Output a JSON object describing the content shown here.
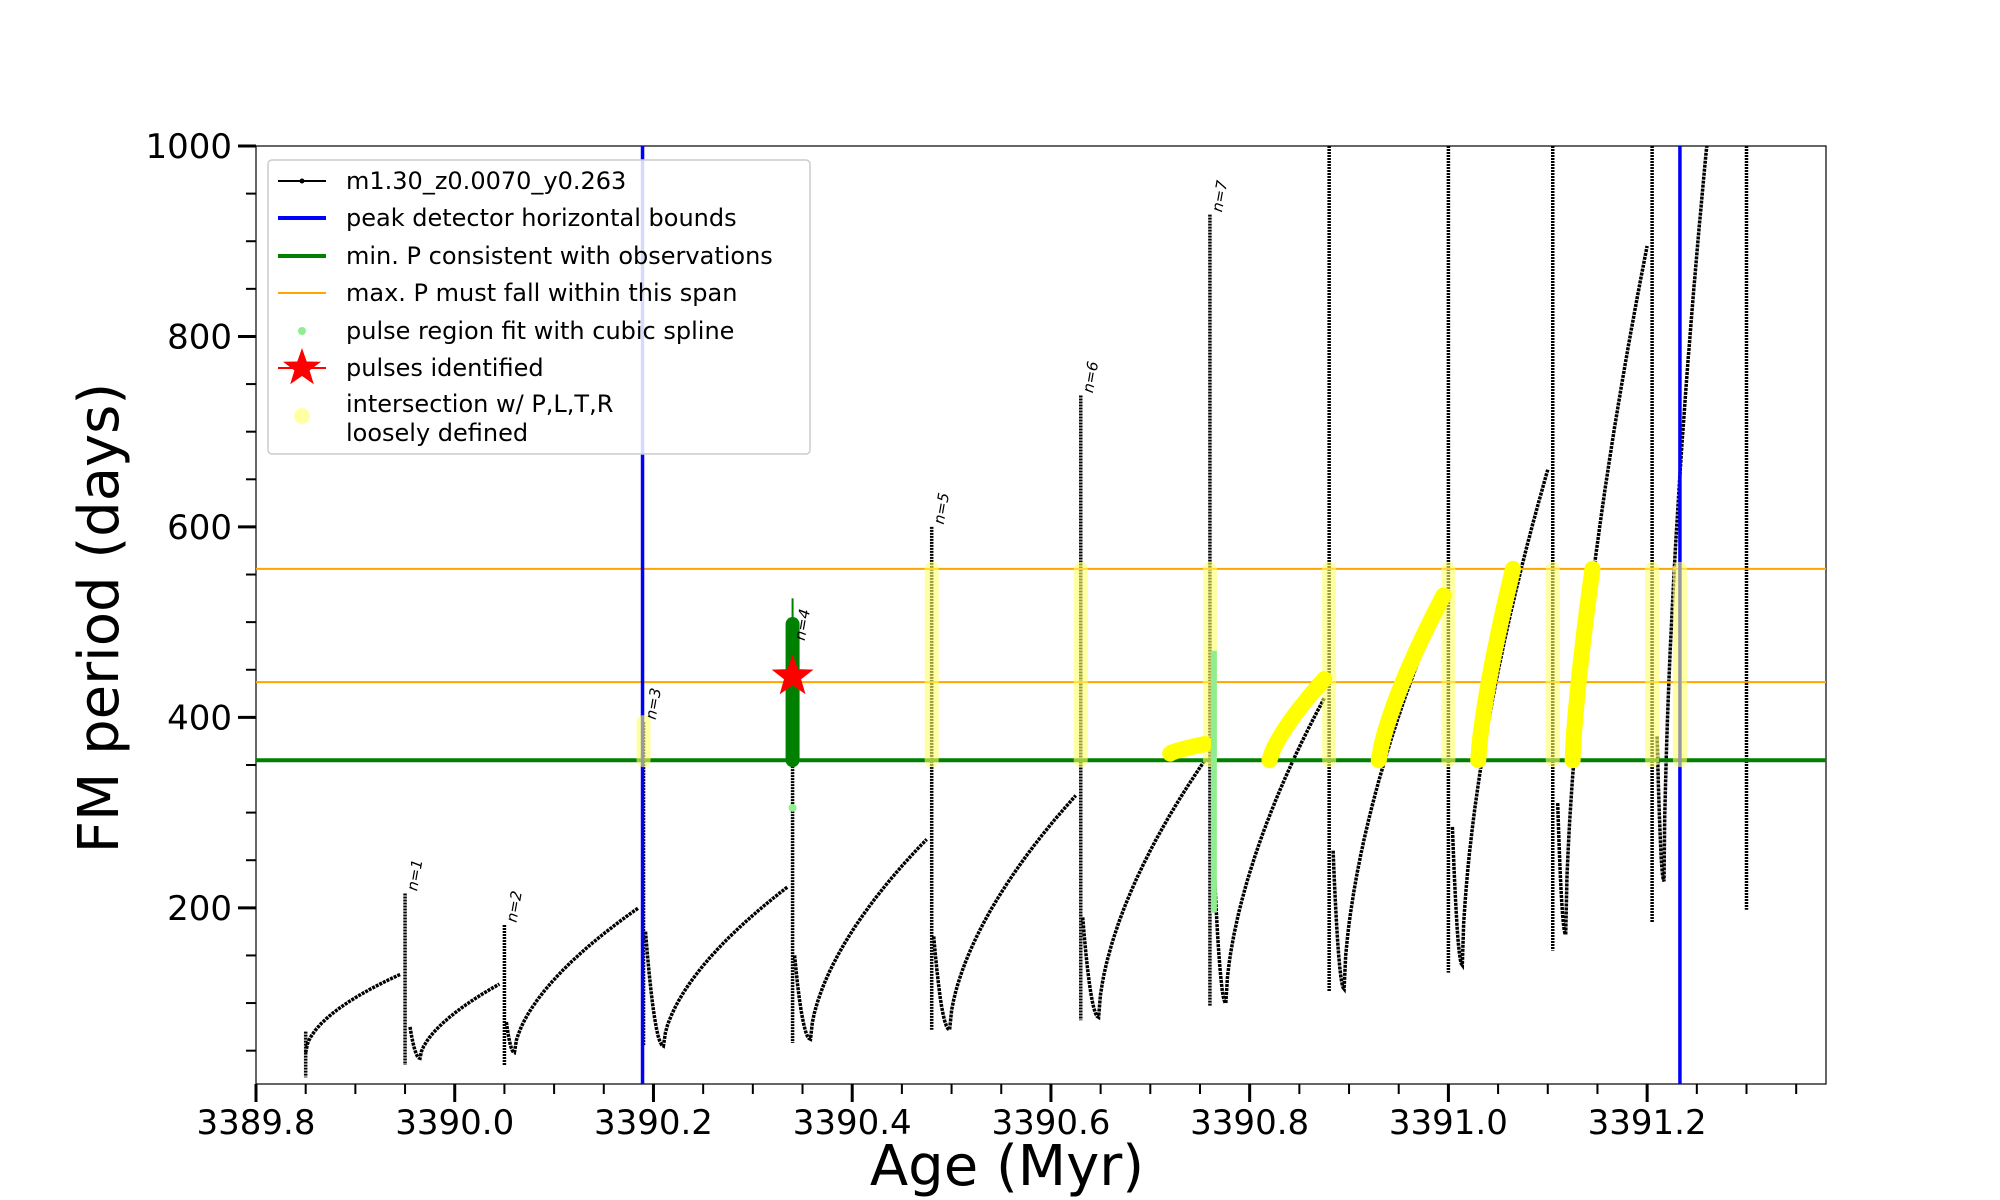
{
  "chart_data": {
    "type": "line",
    "title": "",
    "xlabel": "Age (Myr)",
    "ylabel": "FM period (days)",
    "xlim": [
      3389.8,
      3391.38
    ],
    "ylim": [
      15,
      1000
    ],
    "x_ticks": [
      "3389.8",
      "3390.0",
      "3390.2",
      "3390.4",
      "3390.6",
      "3390.8",
      "3391.0",
      "3391.2"
    ],
    "y_ticks": [
      "200",
      "400",
      "600",
      "800",
      "1000"
    ],
    "grid": false,
    "legend_placement": "top-left",
    "legend": [
      {
        "label": "m1.30_z0.0070_y0.263",
        "kind": "line-marker",
        "color": "#000000"
      },
      {
        "label": "peak detector horizontal bounds",
        "kind": "line",
        "color": "#0000ff"
      },
      {
        "label": "min. P consistent with observations",
        "kind": "line",
        "color": "#008000"
      },
      {
        "label": "max. P must fall within this span",
        "kind": "line",
        "color": "#ffa500"
      },
      {
        "label": "pulse region fit with cubic spline",
        "kind": "dot",
        "color": "#90ee90"
      },
      {
        "label": "pulses identified",
        "kind": "star",
        "color": "#ff0000"
      },
      {
        "label": "intersection w/ P,L,T,R",
        "label2": "loosely defined",
        "kind": "circle",
        "color": "#ffff66"
      }
    ],
    "reference_lines": {
      "vertical_blue_x": [
        3390.189,
        3391.233
      ],
      "horizontal_green_y": 355,
      "horizontal_orange_y": [
        437,
        556
      ]
    },
    "pulse_annotations": [
      {
        "label": "n=1",
        "x": 3389.95,
        "y": 215
      },
      {
        "label": "n=2",
        "x": 3390.05,
        "y": 182
      },
      {
        "label": "n=3",
        "x": 3390.19,
        "y": 395
      },
      {
        "label": "n=4",
        "x": 3390.34,
        "y": 478
      },
      {
        "label": "n=5",
        "x": 3390.48,
        "y": 600
      },
      {
        "label": "n=6",
        "x": 3390.63,
        "y": 738
      },
      {
        "label": "n=7",
        "x": 3390.76,
        "y": 928
      }
    ],
    "pulses_identified": [
      {
        "x": 3390.34,
        "y": 443
      }
    ],
    "series_model": {
      "name": "m1.30_z0.0070_y0.263",
      "spikes": [
        {
          "x": 3389.85,
          "top": 70,
          "bottom": 22
        },
        {
          "x": 3389.95,
          "top": 215,
          "bottom": 35
        },
        {
          "x": 3390.05,
          "top": 182,
          "bottom": 35
        },
        {
          "x": 3390.19,
          "top": 395,
          "bottom": 55
        },
        {
          "x": 3390.34,
          "top": 478,
          "bottom": 58
        },
        {
          "x": 3390.48,
          "top": 600,
          "bottom": 72
        },
        {
          "x": 3390.63,
          "top": 738,
          "bottom": 82
        },
        {
          "x": 3390.76,
          "top": 928,
          "bottom": 97
        },
        {
          "x": 3390.88,
          "top": 1000,
          "bottom": 112
        },
        {
          "x": 3391.0,
          "top": 1000,
          "bottom": 132
        },
        {
          "x": 3391.105,
          "top": 1000,
          "bottom": 155
        },
        {
          "x": 3391.205,
          "top": 1000,
          "bottom": 185
        },
        {
          "x": 3391.3,
          "top": 1000,
          "bottom": 198
        }
      ],
      "segments": [
        {
          "x0": 3389.85,
          "y0": 48,
          "xm": null,
          "ym": null,
          "x1": 3389.945,
          "y1": 130
        },
        {
          "x0": 3389.955,
          "y0": 75,
          "xm": 3389.965,
          "ym": 42,
          "x1": 3390.045,
          "y1": 120
        },
        {
          "x0": 3390.052,
          "y0": 80,
          "xm": 3390.06,
          "ym": 48,
          "x1": 3390.185,
          "y1": 200
        },
        {
          "x0": 3390.192,
          "y0": 175,
          "xm": 3390.21,
          "ym": 55,
          "x1": 3390.335,
          "y1": 222
        },
        {
          "x0": 3390.342,
          "y0": 150,
          "xm": 3390.358,
          "ym": 62,
          "x1": 3390.475,
          "y1": 272
        },
        {
          "x0": 3390.482,
          "y0": 170,
          "xm": 3390.498,
          "ym": 72,
          "x1": 3390.625,
          "y1": 318
        },
        {
          "x0": 3390.632,
          "y0": 190,
          "xm": 3390.648,
          "ym": 85,
          "x1": 3390.755,
          "y1": 355
        },
        {
          "x0": 3390.764,
          "y0": 250,
          "xm": 3390.776,
          "ym": 100,
          "x1": 3390.875,
          "y1": 420
        },
        {
          "x0": 3390.884,
          "y0": 260,
          "xm": 3390.895,
          "ym": 115,
          "x1": 3390.995,
          "y1": 525
        },
        {
          "x0": 3391.004,
          "y0": 285,
          "xm": 3391.014,
          "ym": 140,
          "x1": 3391.1,
          "y1": 660
        },
        {
          "x0": 3391.11,
          "y0": 310,
          "xm": 3391.118,
          "ym": 172,
          "x1": 3391.2,
          "y1": 895
        },
        {
          "x0": 3391.21,
          "y0": 380,
          "xm": 3391.217,
          "ym": 228,
          "x1": 3391.26,
          "y1": 1000
        }
      ]
    }
  }
}
